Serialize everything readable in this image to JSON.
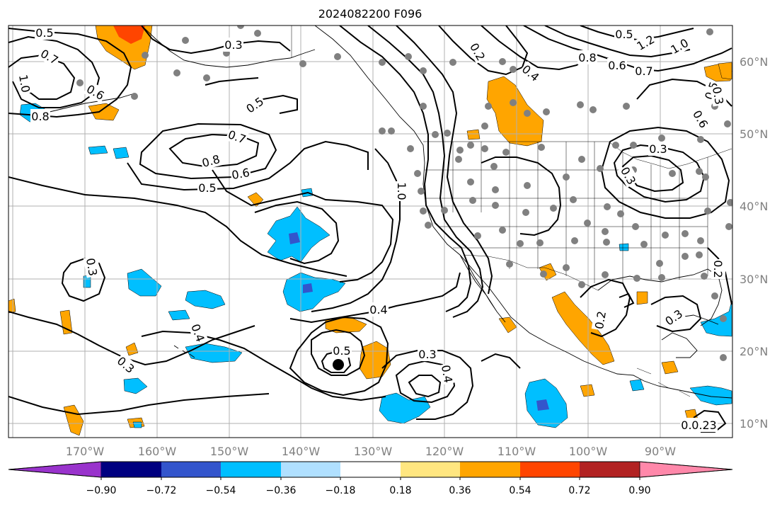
{
  "map": {
    "title": "2024082200 F096",
    "lon_labels": [
      "170°W",
      "160°W",
      "150°W",
      "140°W",
      "130°W",
      "120°W",
      "110°W",
      "100°W",
      "90°W"
    ],
    "lat_labels": [
      "60°N",
      "50°N",
      "40°N",
      "30°N",
      "20°N",
      "10°N"
    ],
    "contour_labels": [
      "0.5",
      "0.3",
      "0.7",
      "1.0",
      "0.6",
      "0.8",
      "0.5",
      "0.7",
      "0.8",
      "0.6",
      "0.5",
      "0.3",
      "0.4",
      "0.5",
      "0.3",
      "0.4",
      "0.3",
      "0.3",
      "0.2",
      "0.4",
      "1.0",
      "0.2",
      "0.4",
      "0.8",
      "0.6",
      "0.5",
      "1.2",
      "1.0",
      "0.7",
      "0.5",
      "0.6",
      "0.3",
      "0.3",
      "0.2",
      "0.3",
      "0.3",
      "0.3",
      "0.2"
    ],
    "colorbar": {
      "tick_labels": [
        "−0.90",
        "−0.72",
        "−0.54",
        "−0.36",
        "−0.18",
        "0.18",
        "0.36",
        "0.54",
        "0.72",
        "0.90"
      ],
      "colors": [
        "#9933cc",
        "#000080",
        "#3355cc",
        "#00bfff",
        "#b0e0ff",
        "#ffffff",
        "#ffe680",
        "#ffa500",
        "#ff4500",
        "#b22222",
        "#ff88aa"
      ]
    },
    "colors": {
      "positive": "#ffa500",
      "positive_strong": "#ff4500",
      "negative": "#00bfff",
      "negative_strong": "#3355cc",
      "dots": "#808080"
    }
  }
}
